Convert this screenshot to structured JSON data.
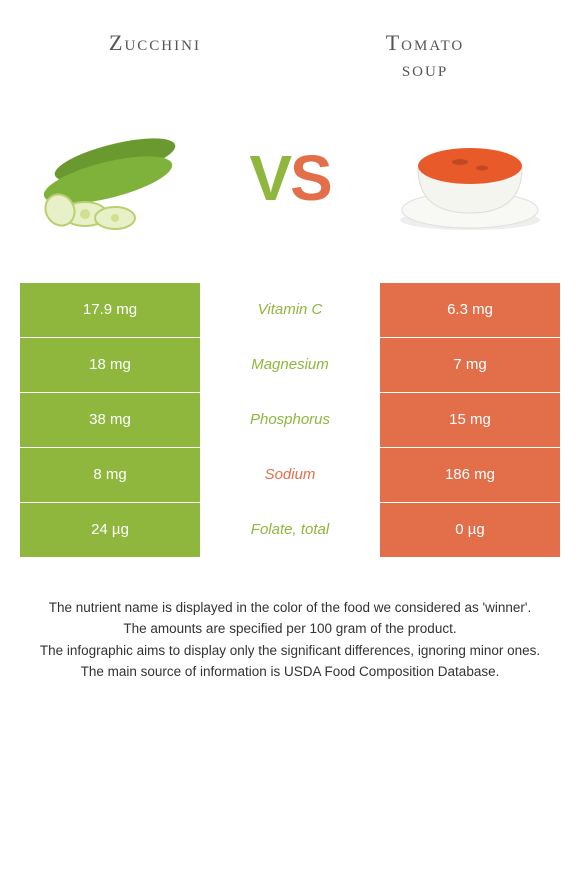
{
  "titles": {
    "left": "Zucchini",
    "right": "Tomato\nsoup"
  },
  "vs": {
    "v": "V",
    "s": "S"
  },
  "colors": {
    "left_bg": "#8fb73e",
    "right_bg": "#e36f4a",
    "mid_left_text": "#8fb73e",
    "mid_right_text": "#e36f4a"
  },
  "rows": [
    {
      "nutrient": "Vitamin C",
      "left": "17.9 mg",
      "right": "6.3 mg",
      "winner": "left"
    },
    {
      "nutrient": "Magnesium",
      "left": "18 mg",
      "right": "7 mg",
      "winner": "left"
    },
    {
      "nutrient": "Phosphorus",
      "left": "38 mg",
      "right": "15 mg",
      "winner": "left"
    },
    {
      "nutrient": "Sodium",
      "left": "8 mg",
      "right": "186 mg",
      "winner": "right"
    },
    {
      "nutrient": "Folate, total",
      "left": "24 µg",
      "right": "0 µg",
      "winner": "left"
    }
  ],
  "footer": [
    "The nutrient name is displayed in the color of the food we considered as 'winner'.",
    "The amounts are specified per 100 gram of the product.",
    "The infographic aims to display only the significant differences, ignoring minor ones.",
    "The main source of information is USDA Food Composition Database."
  ]
}
